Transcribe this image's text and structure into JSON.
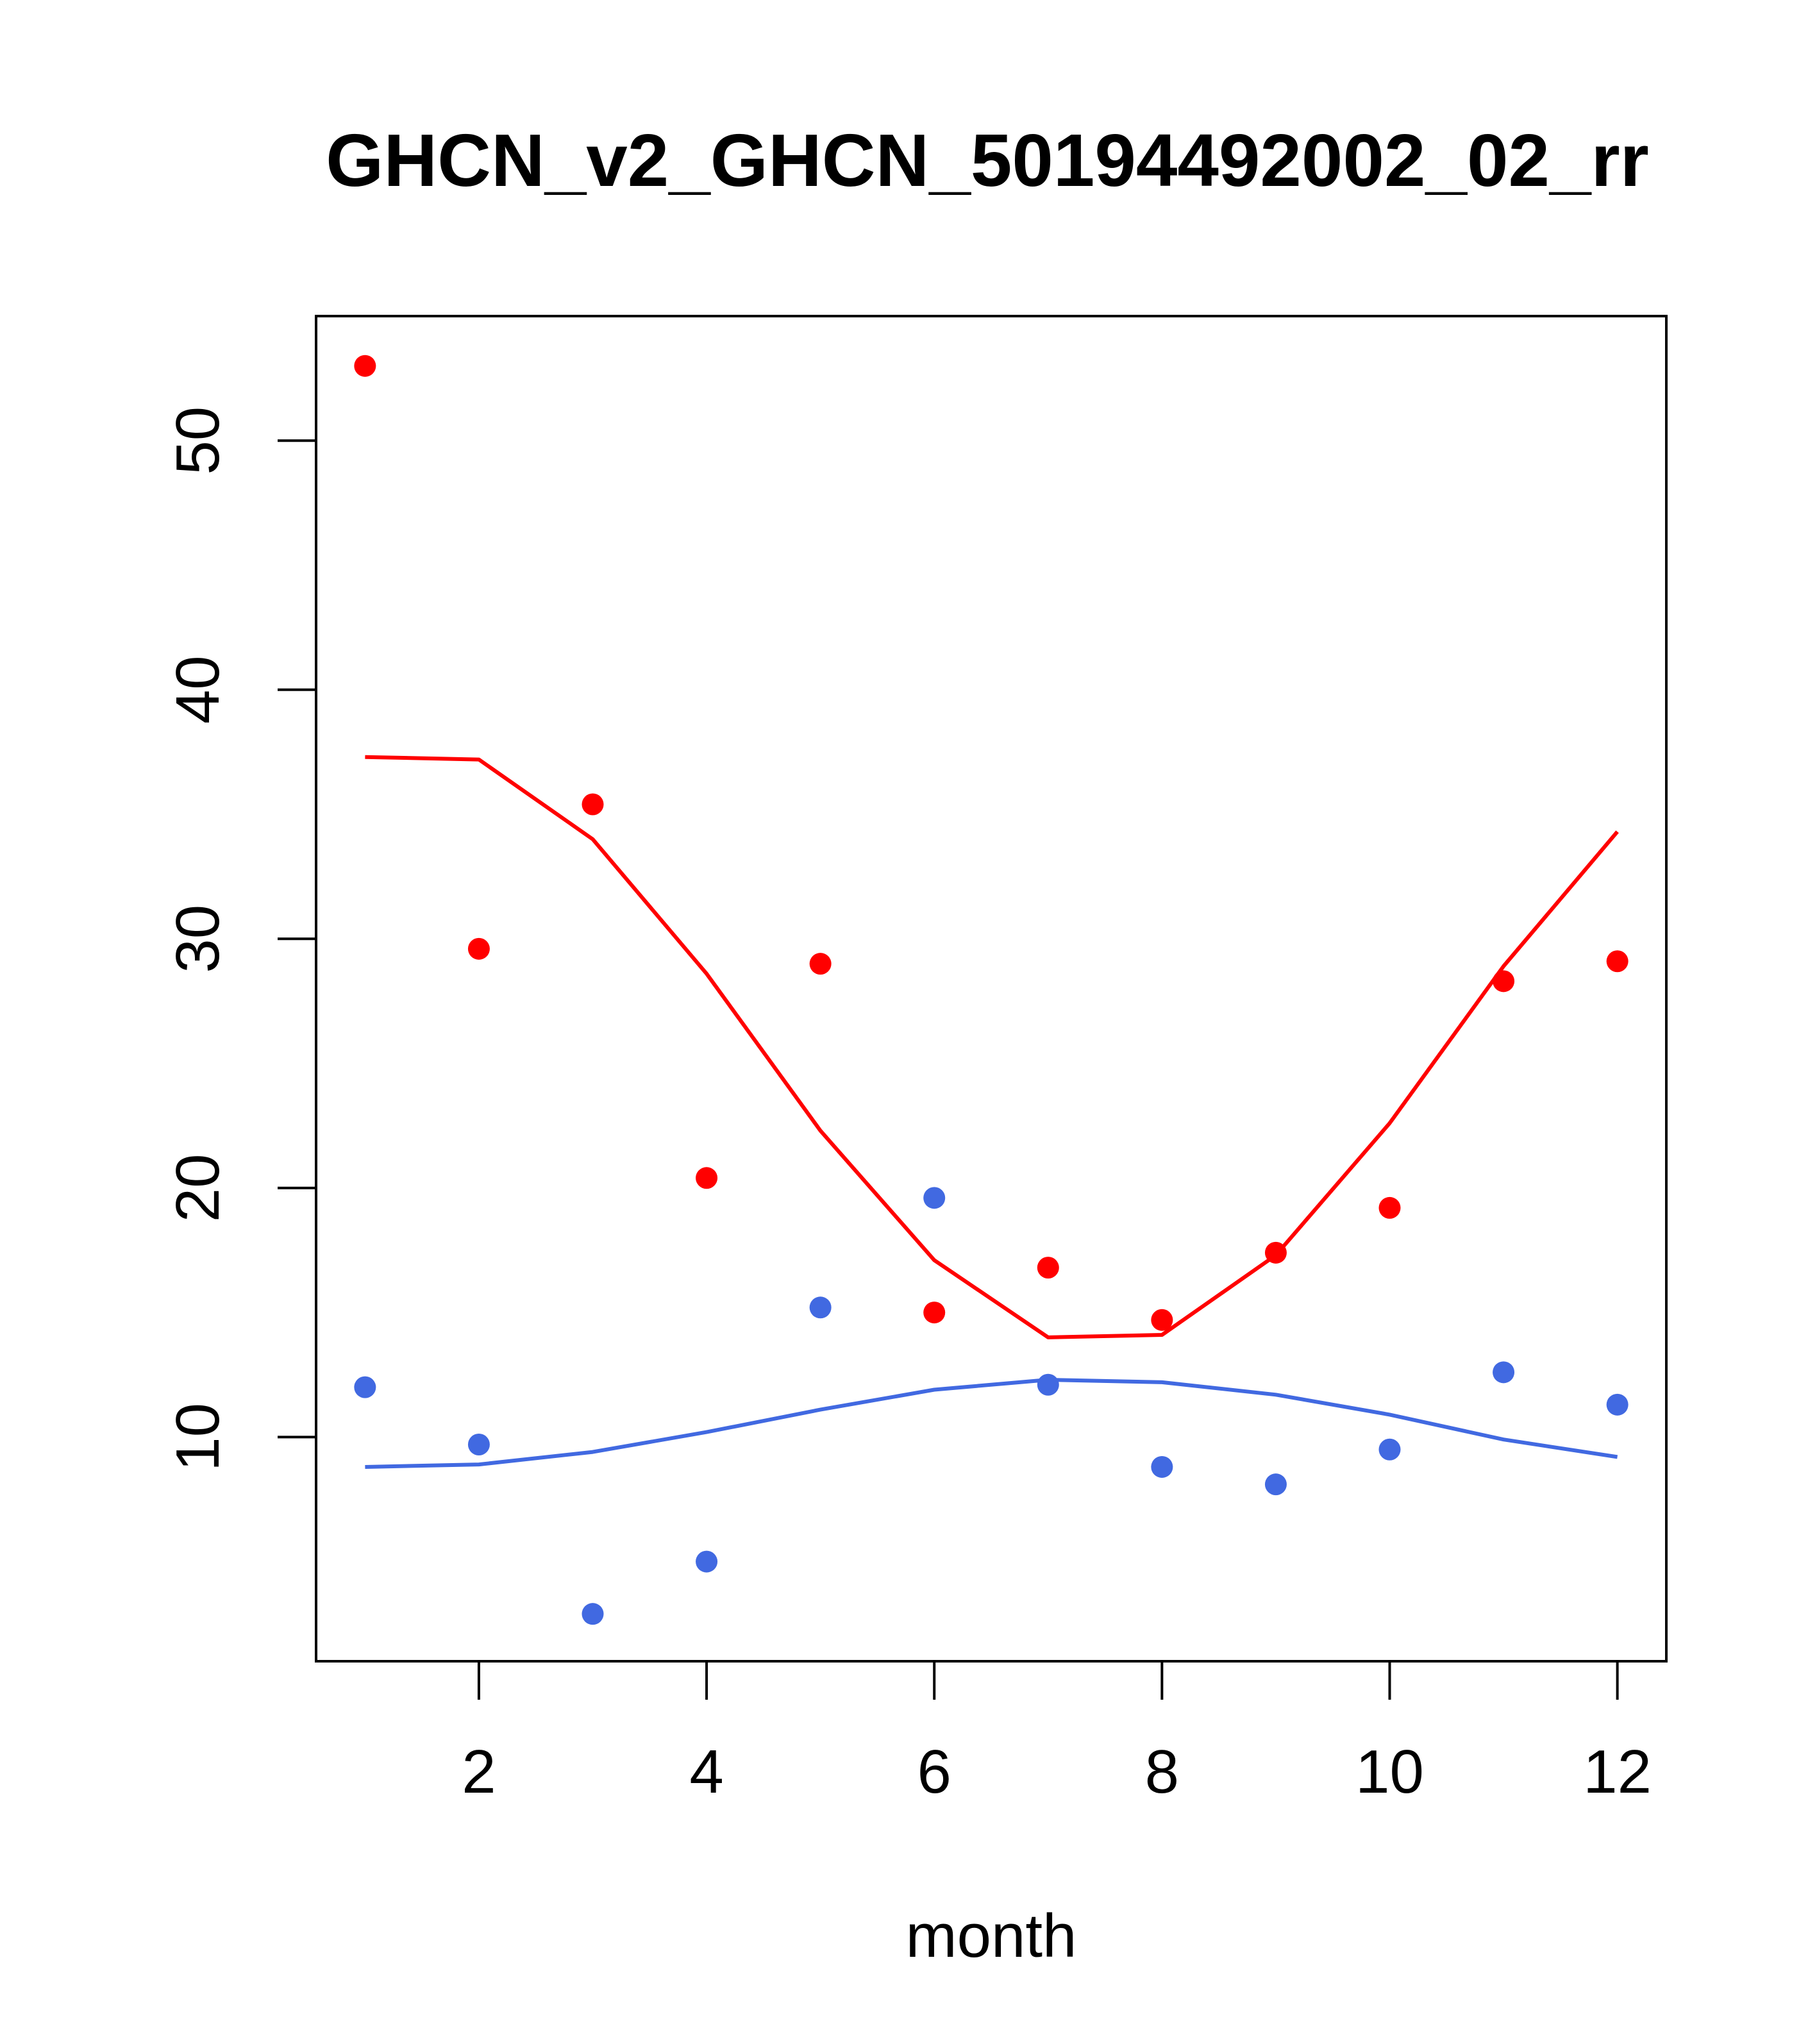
{
  "chart_data": {
    "type": "scatter",
    "title": "GHCN_v2_GHCN_50194492002_02_rr",
    "xlabel": "month",
    "ylabel": "",
    "xlim": [
      0.57,
      12.43
    ],
    "ylim": [
      1.0,
      55.0
    ],
    "x_ticks": [
      2,
      4,
      6,
      8,
      10,
      12
    ],
    "y_ticks": [
      10,
      20,
      30,
      40,
      50
    ],
    "grid": false,
    "legend": "none",
    "series": [
      {
        "color": "#ff0000",
        "kind": "points",
        "x": [
          1,
          2,
          3,
          4,
          5,
          6,
          7,
          8,
          9,
          10,
          11,
          12
        ],
        "y": [
          53.0,
          29.6,
          35.4,
          20.4,
          29.0,
          15.0,
          16.8,
          14.7,
          17.4,
          19.2,
          28.3,
          29.1
        ]
      },
      {
        "color": "#ff0000",
        "kind": "line",
        "x": [
          1,
          2,
          3,
          4,
          5,
          6,
          7,
          8,
          9,
          10,
          11,
          12
        ],
        "y": [
          37.3,
          37.2,
          34.0,
          28.6,
          22.3,
          17.1,
          14.0,
          14.1,
          17.3,
          22.6,
          28.9,
          34.3
        ]
      },
      {
        "color": "#4169e1",
        "kind": "points",
        "x": [
          1,
          2,
          3,
          4,
          5,
          6,
          7,
          8,
          9,
          10,
          11,
          12
        ],
        "y": [
          12.0,
          9.7,
          2.9,
          5.0,
          15.2,
          19.6,
          12.1,
          8.8,
          8.1,
          9.5,
          12.6,
          11.3
        ]
      },
      {
        "color": "#4169e1",
        "kind": "line",
        "x": [
          1,
          2,
          3,
          4,
          5,
          6,
          7,
          8,
          9,
          10,
          11,
          12
        ],
        "y": [
          8.8,
          8.9,
          9.4,
          10.2,
          11.1,
          11.9,
          12.3,
          12.2,
          11.7,
          10.9,
          9.9,
          9.2
        ]
      }
    ]
  }
}
